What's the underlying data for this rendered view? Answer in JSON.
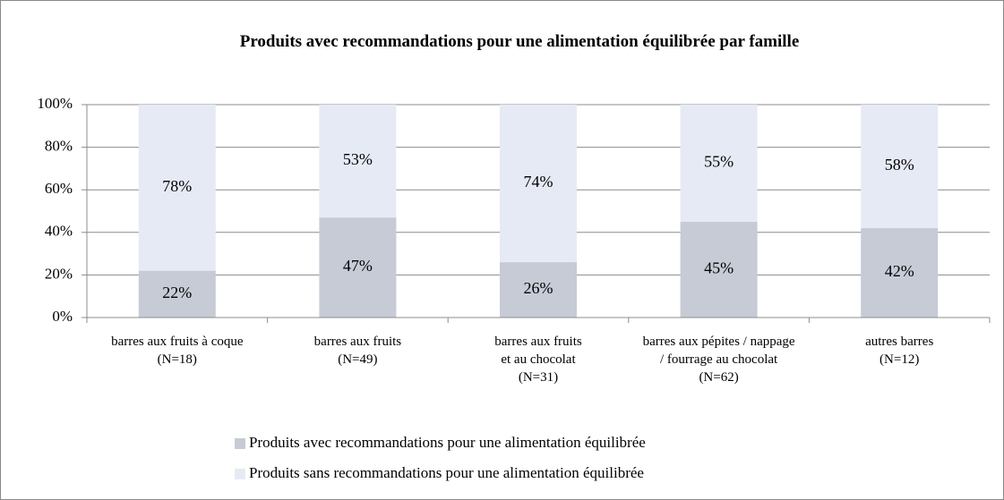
{
  "chart_data": {
    "type": "stacked_bar",
    "title": "Produits avec recommandations pour une alimentation équilibrée  par famille",
    "categories": [
      "barres aux fruits à coque (N=18)",
      "barres aux fruits (N=49)",
      "barres aux fruits et au chocolat (N=31)",
      "barres aux pépites / nappage / fourrage au chocolat (N=62)",
      "autres barres (N=12)"
    ],
    "series": [
      {
        "name": "Produits avec recommandations pour une alimentation équilibrée",
        "color": "#c6cbd6",
        "values": [
          22,
          47,
          26,
          45,
          42
        ],
        "value_labels": [
          "22%",
          "47%",
          "26%",
          "45%",
          "42%"
        ]
      },
      {
        "name": "Produits sans recommandations pour une alimentation équilibrée",
        "color": "#e6eaf4",
        "values": [
          78,
          53,
          74,
          55,
          58
        ],
        "value_labels": [
          "78%",
          "53%",
          "74%",
          "55%",
          "58%"
        ]
      }
    ],
    "ylim": [
      0,
      100
    ],
    "yticks": [
      {
        "value": 0,
        "label": "0%"
      },
      {
        "value": 20,
        "label": "20%"
      },
      {
        "value": 40,
        "label": "40%"
      },
      {
        "value": 60,
        "label": "60%"
      },
      {
        "value": 80,
        "label": "80%"
      },
      {
        "value": 100,
        "label": "100%"
      }
    ],
    "grid": true,
    "legend": "bottom"
  }
}
